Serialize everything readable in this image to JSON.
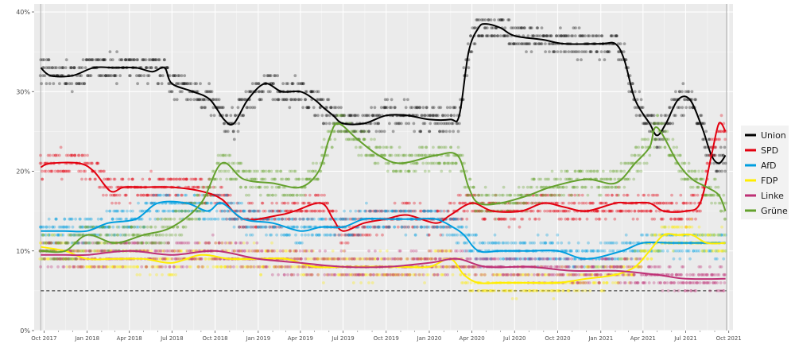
{
  "chart_data": {
    "type": "line",
    "title": "",
    "xlabel": "",
    "ylabel": "",
    "x_tick_labels": [
      "Oct 2017",
      "Jan 2018",
      "Apr 2018",
      "Jul 2018",
      "Oct 2018",
      "Jan 2019",
      "Apr 2019",
      "Jul 2019",
      "Oct 2019",
      "Jan 2020",
      "Apr 2020",
      "Jul 2020",
      "Oct 2020",
      "Jan 2021",
      "Apr 2021",
      "Jul 2021",
      "Oct 2021"
    ],
    "y_tick_labels": [
      "0%",
      "10%",
      "20%",
      "30%",
      "40%"
    ],
    "y_ticks": [
      0,
      10,
      20,
      30,
      40
    ],
    "ylim": [
      0,
      41
    ],
    "xlim": [
      "2017-09-10",
      "2021-10-10"
    ],
    "grid": true,
    "legend_position": "right",
    "threshold": {
      "value": 5,
      "style": "dashed",
      "color": "#444444"
    },
    "vertical_markers": [
      "2017-09-24",
      "2021-09-26"
    ],
    "series": [
      {
        "name": "Union",
        "color": "#000000",
        "points": [
          [
            "2017-09-24",
            33
          ],
          [
            "2017-10-15",
            32
          ],
          [
            "2017-12-01",
            32
          ],
          [
            "2018-01-15",
            33
          ],
          [
            "2018-03-01",
            33
          ],
          [
            "2018-04-15",
            33
          ],
          [
            "2018-05-20",
            32.5
          ],
          [
            "2018-06-15",
            33
          ],
          [
            "2018-07-01",
            31
          ],
          [
            "2018-08-15",
            30
          ],
          [
            "2018-09-20",
            29
          ],
          [
            "2018-10-20",
            26.5
          ],
          [
            "2018-11-10",
            26
          ],
          [
            "2018-12-10",
            29
          ],
          [
            "2019-01-15",
            31
          ],
          [
            "2019-02-20",
            30
          ],
          [
            "2019-04-01",
            30
          ],
          [
            "2019-05-01",
            29
          ],
          [
            "2019-05-20",
            28
          ],
          [
            "2019-06-10",
            27
          ],
          [
            "2019-07-01",
            26
          ],
          [
            "2019-08-15",
            26
          ],
          [
            "2019-10-01",
            27
          ],
          [
            "2019-11-15",
            27
          ],
          [
            "2020-01-01",
            26.5
          ],
          [
            "2020-02-15",
            26.5
          ],
          [
            "2020-03-05",
            27
          ],
          [
            "2020-03-25",
            35
          ],
          [
            "2020-04-15",
            38
          ],
          [
            "2020-05-01",
            38.5
          ],
          [
            "2020-06-01",
            38
          ],
          [
            "2020-07-01",
            37
          ],
          [
            "2020-09-01",
            36.5
          ],
          [
            "2020-10-15",
            36
          ],
          [
            "2021-01-01",
            36
          ],
          [
            "2021-02-01",
            36
          ],
          [
            "2021-02-20",
            34
          ],
          [
            "2021-03-15",
            29
          ],
          [
            "2021-04-15",
            26
          ],
          [
            "2021-05-01",
            24.5
          ],
          [
            "2021-05-20",
            26
          ],
          [
            "2021-06-15",
            29
          ],
          [
            "2021-07-10",
            29
          ],
          [
            "2021-08-05",
            25.5
          ],
          [
            "2021-08-25",
            22
          ],
          [
            "2021-09-10",
            21
          ],
          [
            "2021-09-24",
            22
          ]
        ]
      },
      {
        "name": "SPD",
        "color": "#e3000f",
        "points": [
          [
            "2017-09-24",
            20.5
          ],
          [
            "2017-10-15",
            21
          ],
          [
            "2017-12-15",
            21
          ],
          [
            "2018-01-15",
            20
          ],
          [
            "2018-02-20",
            17.5
          ],
          [
            "2018-03-20",
            18
          ],
          [
            "2018-05-01",
            18
          ],
          [
            "2018-07-01",
            18
          ],
          [
            "2018-09-01",
            17.5
          ],
          [
            "2018-10-15",
            16.5
          ],
          [
            "2018-12-01",
            14
          ],
          [
            "2019-02-15",
            14.5
          ],
          [
            "2019-03-20",
            15
          ],
          [
            "2019-05-15",
            16
          ],
          [
            "2019-06-10",
            14
          ],
          [
            "2019-07-01",
            12.5
          ],
          [
            "2019-08-15",
            13.5
          ],
          [
            "2019-10-01",
            14
          ],
          [
            "2019-11-15",
            14.5
          ],
          [
            "2020-01-15",
            13.5
          ],
          [
            "2020-02-15",
            14.5
          ],
          [
            "2020-04-01",
            16
          ],
          [
            "2020-05-15",
            15
          ],
          [
            "2020-07-15",
            15
          ],
          [
            "2020-09-01",
            16
          ],
          [
            "2020-10-15",
            15.5
          ],
          [
            "2020-12-01",
            15
          ],
          [
            "2021-02-01",
            16
          ],
          [
            "2021-03-01",
            16
          ],
          [
            "2021-04-15",
            16
          ],
          [
            "2021-05-15",
            15
          ],
          [
            "2021-07-01",
            15
          ],
          [
            "2021-08-01",
            16
          ],
          [
            "2021-08-25",
            22
          ],
          [
            "2021-09-10",
            26
          ],
          [
            "2021-09-24",
            25
          ]
        ]
      },
      {
        "name": "AfD",
        "color": "#009ee0",
        "points": [
          [
            "2017-09-24",
            12.5
          ],
          [
            "2017-11-15",
            12.5
          ],
          [
            "2018-01-01",
            12.5
          ],
          [
            "2018-02-15",
            13.5
          ],
          [
            "2018-04-15",
            14
          ],
          [
            "2018-06-01",
            16
          ],
          [
            "2018-08-01",
            16
          ],
          [
            "2018-09-15",
            15
          ],
          [
            "2018-10-15",
            16
          ],
          [
            "2018-12-01",
            14
          ],
          [
            "2019-02-01",
            13.5
          ],
          [
            "2019-04-01",
            12.5
          ],
          [
            "2019-05-15",
            13
          ],
          [
            "2019-07-01",
            13
          ],
          [
            "2019-08-15",
            14
          ],
          [
            "2019-10-01",
            14
          ],
          [
            "2019-12-01",
            14
          ],
          [
            "2020-01-15",
            14
          ],
          [
            "2020-02-20",
            13
          ],
          [
            "2020-03-15",
            12
          ],
          [
            "2020-04-15",
            10
          ],
          [
            "2020-06-01",
            10
          ],
          [
            "2020-08-01",
            10
          ],
          [
            "2020-10-01",
            10
          ],
          [
            "2020-12-01",
            9
          ],
          [
            "2021-02-15",
            10
          ],
          [
            "2021-04-01",
            11
          ],
          [
            "2021-06-01",
            11
          ],
          [
            "2021-07-15",
            11
          ],
          [
            "2021-08-15",
            11
          ],
          [
            "2021-09-24",
            11
          ]
        ]
      },
      {
        "name": "FDP",
        "color": "#ffed00",
        "points": [
          [
            "2017-09-24",
            10.5
          ],
          [
            "2017-11-15",
            10
          ],
          [
            "2018-01-01",
            9
          ],
          [
            "2018-03-01",
            9
          ],
          [
            "2018-05-01",
            9
          ],
          [
            "2018-07-01",
            8.5
          ],
          [
            "2018-09-01",
            9.5
          ],
          [
            "2018-11-01",
            9
          ],
          [
            "2019-01-01",
            9
          ],
          [
            "2019-03-01",
            9
          ],
          [
            "2019-05-01",
            8
          ],
          [
            "2019-07-01",
            8
          ],
          [
            "2019-09-01",
            8
          ],
          [
            "2019-11-01",
            8
          ],
          [
            "2020-01-01",
            8
          ],
          [
            "2020-02-15",
            9
          ],
          [
            "2020-03-15",
            7
          ],
          [
            "2020-04-15",
            6
          ],
          [
            "2020-06-01",
            6
          ],
          [
            "2020-08-01",
            6
          ],
          [
            "2020-10-01",
            6
          ],
          [
            "2020-12-01",
            6.5
          ],
          [
            "2021-02-01",
            7
          ],
          [
            "2021-03-15",
            8
          ],
          [
            "2021-04-15",
            10
          ],
          [
            "2021-05-15",
            12
          ],
          [
            "2021-06-15",
            12
          ],
          [
            "2021-07-15",
            12
          ],
          [
            "2021-08-15",
            11
          ],
          [
            "2021-09-24",
            11
          ]
        ]
      },
      {
        "name": "Linke",
        "color": "#be3075",
        "points": [
          [
            "2017-09-24",
            9.5
          ],
          [
            "2017-11-15",
            9.5
          ],
          [
            "2018-01-01",
            9.5
          ],
          [
            "2018-04-01",
            10
          ],
          [
            "2018-07-01",
            9.5
          ],
          [
            "2018-10-01",
            10
          ],
          [
            "2019-01-01",
            9
          ],
          [
            "2019-04-01",
            8.5
          ],
          [
            "2019-07-01",
            8
          ],
          [
            "2019-10-01",
            8
          ],
          [
            "2020-01-01",
            8.5
          ],
          [
            "2020-03-01",
            9
          ],
          [
            "2020-05-01",
            8
          ],
          [
            "2020-08-01",
            8
          ],
          [
            "2020-11-01",
            7.5
          ],
          [
            "2021-02-01",
            7.5
          ],
          [
            "2021-05-01",
            7
          ],
          [
            "2021-07-01",
            6.5
          ],
          [
            "2021-09-24",
            6.5
          ]
        ]
      },
      {
        "name": "Grüne",
        "color": "#64a12d",
        "points": [
          [
            "2017-09-24",
            10
          ],
          [
            "2017-11-15",
            10
          ],
          [
            "2018-01-01",
            12
          ],
          [
            "2018-03-01",
            11
          ],
          [
            "2018-05-01",
            12
          ],
          [
            "2018-07-01",
            13
          ],
          [
            "2018-09-01",
            16
          ],
          [
            "2018-10-15",
            21
          ],
          [
            "2018-12-01",
            19
          ],
          [
            "2019-02-01",
            18.5
          ],
          [
            "2019-04-01",
            18
          ],
          [
            "2019-05-10",
            20
          ],
          [
            "2019-06-01",
            24
          ],
          [
            "2019-06-20",
            26
          ],
          [
            "2019-08-01",
            24
          ],
          [
            "2019-09-15",
            22
          ],
          [
            "2019-11-01",
            21
          ],
          [
            "2020-01-15",
            22
          ],
          [
            "2020-03-01",
            22
          ],
          [
            "2020-03-25",
            18
          ],
          [
            "2020-04-15",
            16
          ],
          [
            "2020-06-01",
            16
          ],
          [
            "2020-08-01",
            17
          ],
          [
            "2020-09-15",
            18
          ],
          [
            "2020-12-01",
            19
          ],
          [
            "2021-02-01",
            18.5
          ],
          [
            "2021-03-15",
            21
          ],
          [
            "2021-04-15",
            23
          ],
          [
            "2021-05-01",
            25.5
          ],
          [
            "2021-06-15",
            21
          ],
          [
            "2021-07-15",
            19
          ],
          [
            "2021-08-15",
            18
          ],
          [
            "2021-09-10",
            17
          ],
          [
            "2021-09-24",
            15
          ]
        ]
      }
    ]
  }
}
